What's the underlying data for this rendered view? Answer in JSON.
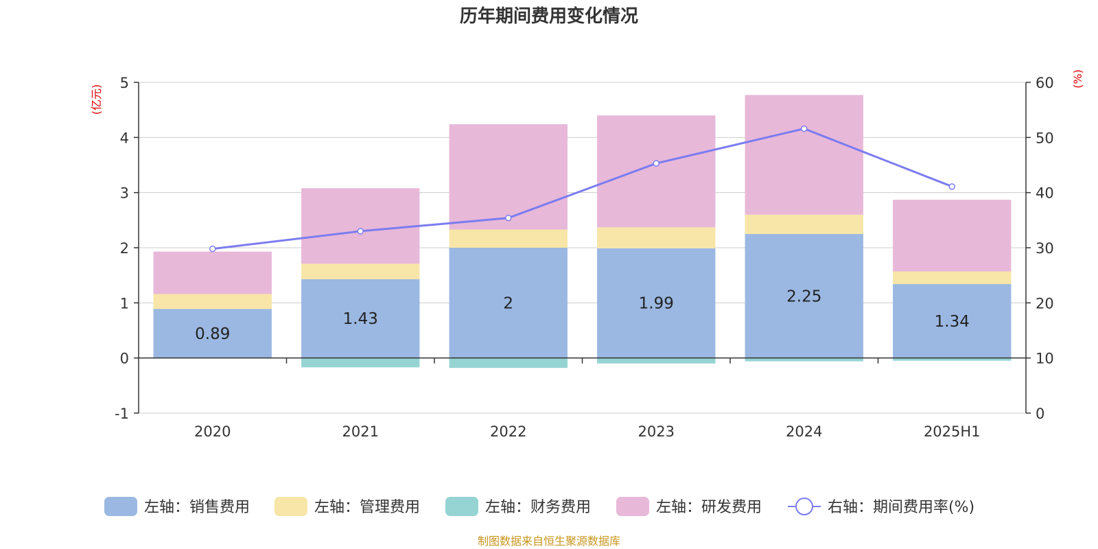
{
  "chart_data": {
    "type": "bar",
    "stacked": true,
    "title": "历年期间费用变化情况",
    "left_axis_unit": "(亿元)",
    "right_axis_unit": "(%)",
    "categories": [
      "2020",
      "2021",
      "2022",
      "2023",
      "2024",
      "2025H1"
    ],
    "left_ylim": [
      -1,
      5
    ],
    "left_ticks": [
      "5",
      "4",
      "3",
      "2",
      "1",
      "0",
      "-1"
    ],
    "right_ylim": [
      0,
      60
    ],
    "right_ticks": [
      "60",
      "50",
      "40",
      "30",
      "20",
      "10",
      "0"
    ],
    "series": [
      {
        "name": "左轴：销售费用",
        "axis": "left",
        "color": "#9bb8e2",
        "values": [
          0.89,
          1.43,
          2,
          1.99,
          2.25,
          1.34
        ],
        "labels": [
          "0.89",
          "1.43",
          "2",
          "1.99",
          "2.25",
          "1.34"
        ]
      },
      {
        "name": "左轴：管理费用",
        "axis": "left",
        "color": "#f7e6a8",
        "values": [
          0.27,
          0.28,
          0.33,
          0.38,
          0.35,
          0.23
        ]
      },
      {
        "name": "左轴：财务费用",
        "axis": "left",
        "color": "#96d4d4",
        "values": [
          -0.01,
          -0.17,
          -0.18,
          -0.1,
          -0.06,
          -0.05
        ]
      },
      {
        "name": "左轴：研发费用",
        "axis": "left",
        "color": "#e8b8d9",
        "values": [
          0.77,
          1.37,
          1.91,
          2.03,
          2.17,
          1.3
        ]
      },
      {
        "name": "右轴：期间费用率(%)",
        "axis": "right",
        "type": "line",
        "color": "#7b7cf0",
        "values": [
          29.8,
          33,
          35.4,
          45.3,
          51.6,
          41.1
        ]
      }
    ],
    "legend_position": "bottom",
    "grid": true,
    "source": "制图数据来自恒生聚源数据库"
  }
}
